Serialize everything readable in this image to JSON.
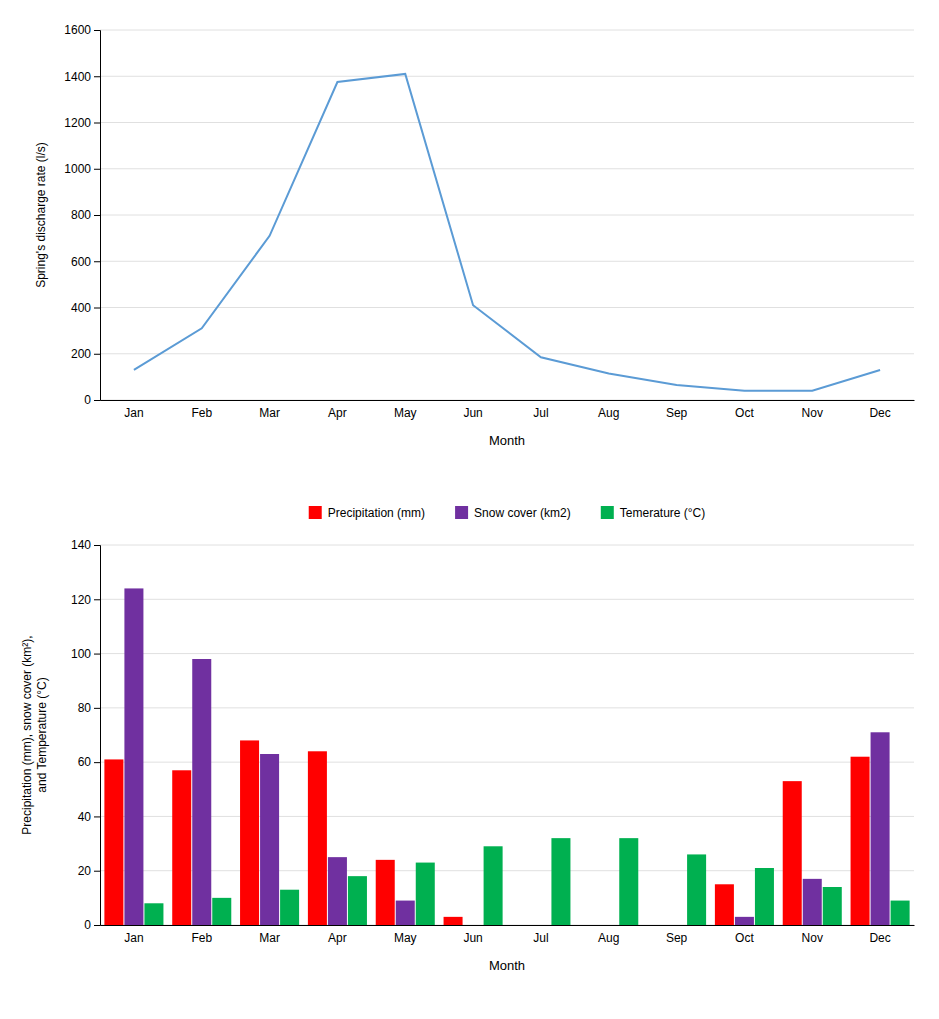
{
  "chart_data": [
    {
      "type": "line",
      "categories": [
        "Jan",
        "Feb",
        "Mar",
        "Apr",
        "May",
        "Jun",
        "Jul",
        "Aug",
        "Sep",
        "Oct",
        "Nov",
        "Dec"
      ],
      "values": [
        130,
        310,
        710,
        1375,
        1410,
        410,
        185,
        115,
        65,
        40,
        40,
        130
      ],
      "color": "#5B9BD5",
      "y_label": "Spring's discharge rate (l/s)",
      "x_label": "Month",
      "ylim": [
        0,
        1600
      ],
      "yticks": [
        0,
        200,
        400,
        600,
        800,
        1000,
        1200,
        1400,
        1600
      ],
      "grid": true
    },
    {
      "type": "bar",
      "categories": [
        "Jan",
        "Feb",
        "Mar",
        "Apr",
        "May",
        "Jun",
        "Jul",
        "Aug",
        "Sep",
        "Oct",
        "Nov",
        "Dec"
      ],
      "series": [
        {
          "name": "Precipitation (mm)",
          "color": "#FF0000",
          "values": [
            61,
            57,
            68,
            64,
            24,
            3,
            0,
            0,
            0,
            15,
            53,
            62
          ]
        },
        {
          "name": "Snow cover (km2)",
          "color": "#7030A0",
          "values": [
            124,
            98,
            63,
            25,
            9,
            0,
            0,
            0,
            0,
            3,
            17,
            71
          ]
        },
        {
          "name": "Temerature (°C)",
          "color": "#00B050",
          "values": [
            8,
            10,
            13,
            18,
            23,
            29,
            32,
            32,
            26,
            21,
            14,
            9
          ]
        }
      ],
      "y_label": "Precipitation (mm), snow cover (km²),\nand Temperature (°C)",
      "x_label": "Month",
      "ylim": [
        0,
        140
      ],
      "yticks": [
        0,
        20,
        40,
        60,
        80,
        100,
        120,
        140
      ],
      "grid": true,
      "legend": "top"
    }
  ]
}
